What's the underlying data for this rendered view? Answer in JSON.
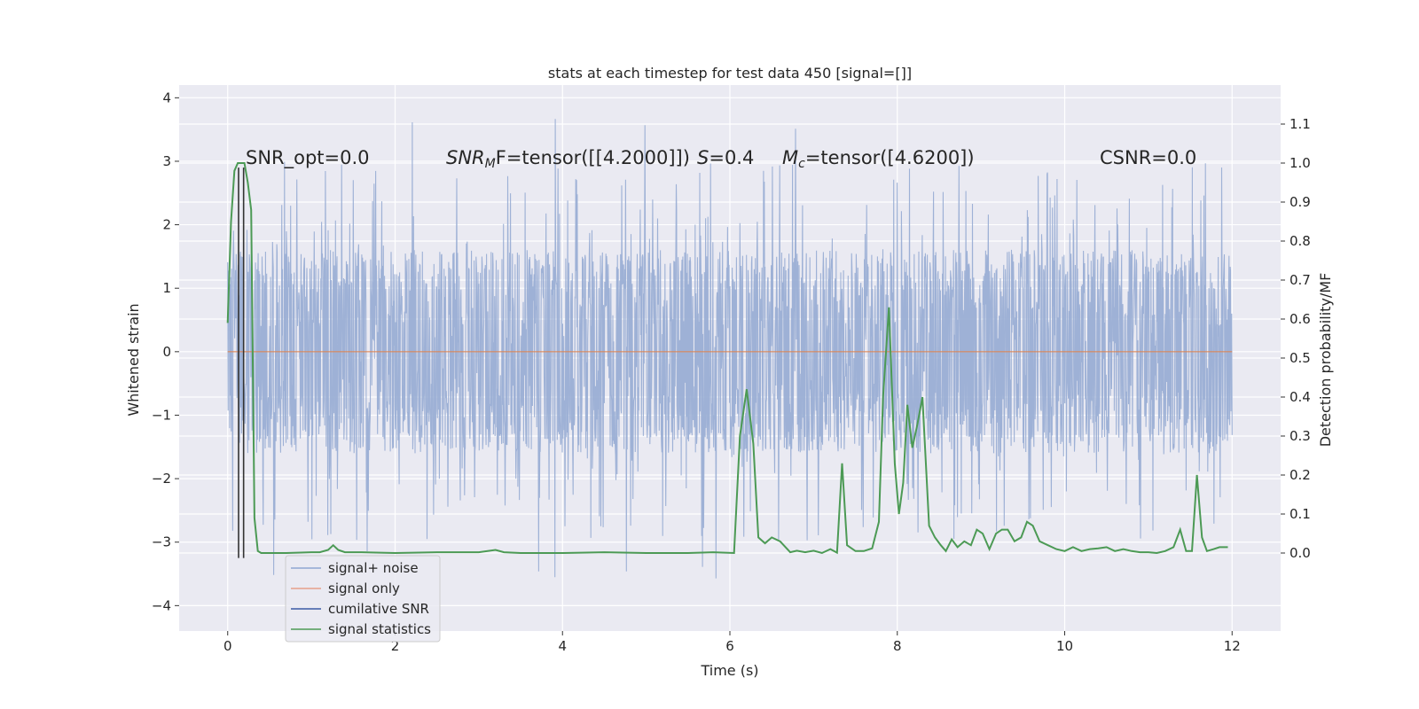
{
  "chart_data": {
    "type": "line",
    "title": "stats at each timestep for test data 450 [signal=[]]",
    "xlabel": "Time (s)",
    "ylabel": "Whitened strain",
    "y2label": "Detection probability/MF",
    "xlim": [
      -0.58,
      12.58
    ],
    "ylim": [
      -4.4,
      4.2
    ],
    "y2lim": [
      -0.2,
      1.2
    ],
    "xticks": [
      0,
      2,
      4,
      6,
      8,
      10,
      12
    ],
    "yticks": [
      -4,
      -3,
      -2,
      -1,
      0,
      1,
      2,
      3,
      4
    ],
    "y2ticks": [
      0.0,
      0.1,
      0.2,
      0.3,
      0.4,
      0.5,
      0.6,
      0.7,
      0.8,
      0.9,
      1.0,
      1.1
    ],
    "xtick_labels": [
      "0",
      "2",
      "4",
      "6",
      "8",
      "10",
      "12"
    ],
    "ytick_labels": [
      "−4",
      "−3",
      "−2",
      "−1",
      "0",
      "1",
      "2",
      "3",
      "4"
    ],
    "y2tick_labels": [
      "0.0",
      "0.1",
      "0.2",
      "0.3",
      "0.4",
      "0.5",
      "0.6",
      "0.7",
      "0.8",
      "0.9",
      "1.0",
      "1.1"
    ],
    "annotations": {
      "snr_opt": "SNR_opt=0.0",
      "snr_mf_symbol": "SNR",
      "snr_mf_sub": "M",
      "snr_mf_rest": "F=tensor([[4.2000]])",
      "s_symbol": "S",
      "s_value": "=0.4",
      "mc_symbol": "M",
      "mc_sub": "c",
      "mc_rest": "=tensor([4.6200])",
      "csnr": "CSNR=0.0"
    },
    "legend": {
      "placement": "lower-left",
      "entries": [
        {
          "label": "signal+ noise",
          "color": "#8fa6d1"
        },
        {
          "label": "signal only",
          "color": "#e6a08a"
        },
        {
          "label": "cumilative SNR",
          "color": "#3b5ba5"
        },
        {
          "label": "signal statistics",
          "color": "#4c9a55"
        }
      ]
    },
    "series": [
      {
        "name": "signal+ noise",
        "axis": "left",
        "color": "#9aaed4",
        "description": "whitened strain noise, approx ±1.6 dense band with spikes to ±3.8",
        "t_start": 0,
        "t_end": 12,
        "envelope": 1.6
      },
      {
        "name": "signal only",
        "axis": "left",
        "color": "#dd8452",
        "x": [
          0,
          12
        ],
        "y": [
          0,
          0
        ]
      },
      {
        "name": "cumilative SNR",
        "axis": "left",
        "color": "#333333",
        "vlines": [
          0.13,
          0.19
        ],
        "ymin": -3.25,
        "ymax": 2.9
      },
      {
        "name": "signal statistics",
        "axis": "right",
        "color": "#4c9a55",
        "x": [
          0.0,
          0.04,
          0.08,
          0.12,
          0.16,
          0.2,
          0.24,
          0.28,
          0.32,
          0.36,
          0.4,
          0.5,
          0.7,
          1.0,
          1.1,
          1.2,
          1.26,
          1.32,
          1.4,
          1.6,
          2.0,
          2.5,
          3.0,
          3.2,
          3.3,
          3.5,
          4.0,
          4.5,
          5.0,
          5.5,
          5.8,
          6.05,
          6.12,
          6.2,
          6.28,
          6.34,
          6.42,
          6.5,
          6.6,
          6.72,
          6.8,
          6.9,
          7.0,
          7.1,
          7.2,
          7.28,
          7.34,
          7.4,
          7.5,
          7.6,
          7.7,
          7.78,
          7.83,
          7.9,
          7.97,
          8.02,
          8.07,
          8.12,
          8.18,
          8.24,
          8.3,
          8.38,
          8.45,
          8.52,
          8.58,
          8.65,
          8.72,
          8.8,
          8.88,
          8.95,
          9.02,
          9.1,
          9.18,
          9.25,
          9.32,
          9.4,
          9.48,
          9.55,
          9.62,
          9.7,
          9.8,
          9.9,
          10.0,
          10.1,
          10.2,
          10.3,
          10.4,
          10.5,
          10.6,
          10.7,
          10.8,
          10.9,
          11.0,
          11.1,
          11.2,
          11.3,
          11.38,
          11.45,
          11.52,
          11.58,
          11.64,
          11.7,
          11.78,
          11.85,
          11.95
        ],
        "y": [
          0.59,
          0.85,
          0.98,
          1.0,
          1.0,
          1.0,
          0.95,
          0.88,
          0.09,
          0.005,
          0.0,
          0.0,
          0.0,
          0.002,
          0.002,
          0.008,
          0.02,
          0.008,
          0.002,
          0.002,
          0.0,
          0.002,
          0.002,
          0.008,
          0.002,
          0.0,
          0.0,
          0.002,
          0.0,
          0.0,
          0.002,
          0.0,
          0.3,
          0.42,
          0.28,
          0.04,
          0.025,
          0.04,
          0.03,
          0.002,
          0.006,
          0.002,
          0.006,
          0.0,
          0.01,
          0.001,
          0.23,
          0.02,
          0.005,
          0.005,
          0.012,
          0.08,
          0.4,
          0.63,
          0.23,
          0.1,
          0.18,
          0.38,
          0.27,
          0.33,
          0.4,
          0.07,
          0.04,
          0.02,
          0.005,
          0.035,
          0.015,
          0.03,
          0.02,
          0.06,
          0.05,
          0.01,
          0.05,
          0.06,
          0.06,
          0.03,
          0.04,
          0.08,
          0.07,
          0.03,
          0.02,
          0.01,
          0.005,
          0.015,
          0.005,
          0.01,
          0.012,
          0.015,
          0.005,
          0.01,
          0.005,
          0.002,
          0.002,
          0.0,
          0.005,
          0.015,
          0.06,
          0.005,
          0.005,
          0.2,
          0.04,
          0.005,
          0.01,
          0.015,
          0.015
        ]
      }
    ]
  }
}
